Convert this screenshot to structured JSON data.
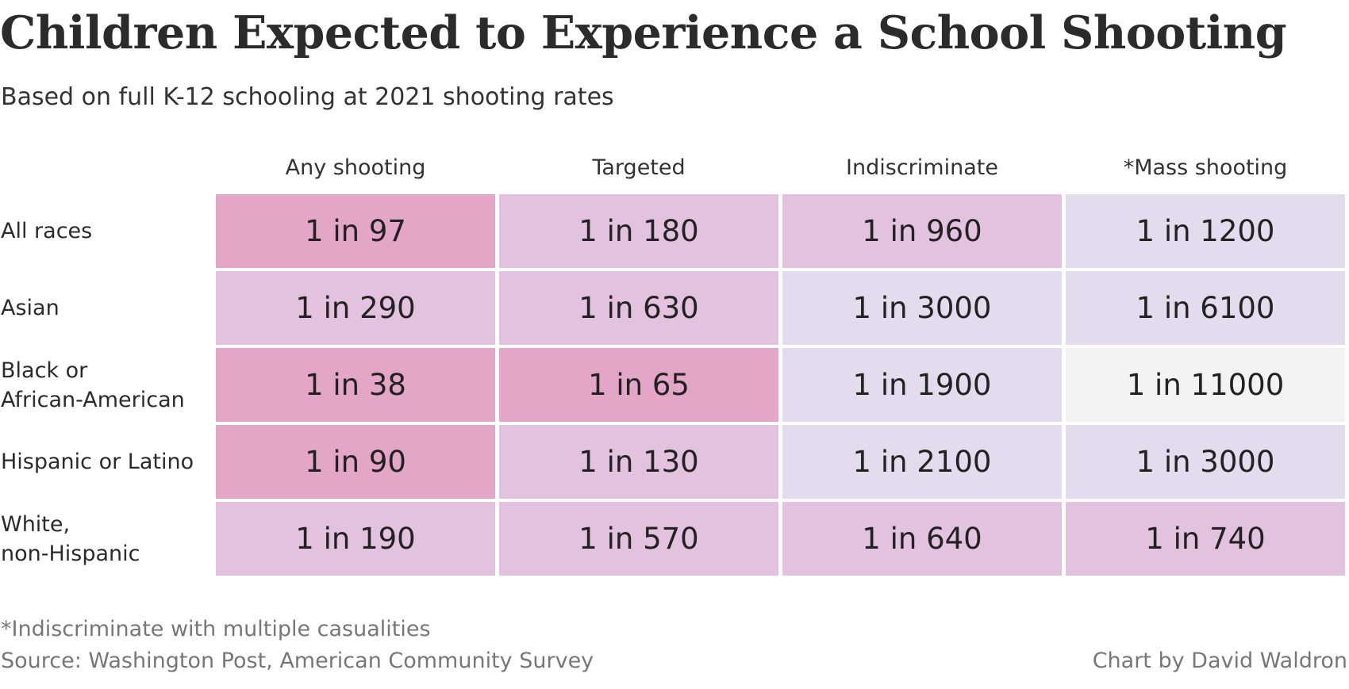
{
  "chart_data": {
    "type": "table",
    "title": "Children Expected to Experience a School Shooting",
    "subtitle": "Based on full K-12 schooling at 2021 shooting rates",
    "columns": [
      "Any shooting",
      "Targeted",
      "Indiscriminate",
      "*Mass shooting"
    ],
    "rows": [
      {
        "label": "All races",
        "cells": [
          "1 in 97",
          "1 in 180",
          "1 in 960",
          "1 in 1200"
        ],
        "values": [
          97,
          180,
          960,
          1200
        ]
      },
      {
        "label": "Asian",
        "cells": [
          "1 in 290",
          "1 in 630",
          "1 in 3000",
          "1 in 6100"
        ],
        "values": [
          290,
          630,
          3000,
          6100
        ]
      },
      {
        "label": "Black or\nAfrican-American",
        "cells": [
          "1 in 38",
          "1 in 65",
          "1 in 1900",
          "1 in 11000"
        ],
        "values": [
          38,
          65,
          1900,
          11000
        ]
      },
      {
        "label": "Hispanic or Latino",
        "cells": [
          "1 in 90",
          "1 in 130",
          "1 in 2100",
          "1 in 3000"
        ],
        "values": [
          90,
          130,
          2100,
          3000
        ]
      },
      {
        "label": "White,\nnon-Hispanic",
        "cells": [
          "1 in 190",
          "1 in 570",
          "1 in 640",
          "1 in 740"
        ],
        "values": [
          190,
          570,
          640,
          740
        ]
      }
    ],
    "color_scale": [
      "#e4a6c7",
      "#e3c2e0",
      "#e3dcef",
      "#f3f3f3"
    ],
    "footnote": "*Indiscriminate with multiple casualities",
    "source": "Source: Washington Post, American Community Survey",
    "credit": "Chart by David Waldron"
  }
}
